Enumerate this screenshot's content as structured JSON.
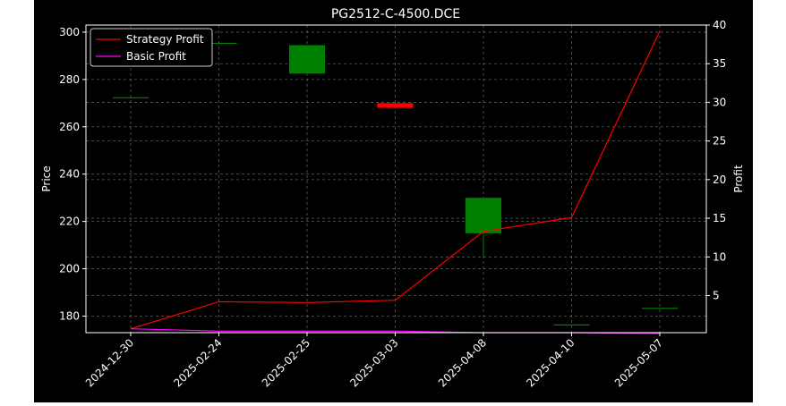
{
  "chart_data": {
    "type": "candlestick+line",
    "title": "PG2512-C-4500.DCE",
    "xlabel": "",
    "ylabel": "Price",
    "y2label": "Profit",
    "categories": [
      "2024-12-30",
      "2025-02-24",
      "2025-02-25",
      "2025-03-03",
      "2025-04-08",
      "2025-04-10",
      "2025-05-07"
    ],
    "ylim": [
      173,
      303
    ],
    "y2lim": [
      0.2,
      40
    ],
    "yticks": [
      180,
      200,
      220,
      240,
      260,
      280,
      300
    ],
    "y2ticks": [
      5,
      10,
      15,
      20,
      25,
      30,
      35,
      40
    ],
    "candles": [
      {
        "date": "2024-12-30",
        "open": 272.5,
        "close": 272.5,
        "high": 272.5,
        "low": 272.5
      },
      {
        "date": "2025-02-24",
        "open": 295.5,
        "close": 295.5,
        "high": 295.5,
        "low": 295.5
      },
      {
        "date": "2025-02-25",
        "open": 282.5,
        "close": 294.5,
        "high": 294.5,
        "low": 282.5
      },
      {
        "date": "2025-03-03",
        "open": 270,
        "close": 268,
        "high": 270,
        "low": 268
      },
      {
        "date": "2025-04-08",
        "open": 215,
        "close": 230,
        "high": 230,
        "low": 205
      },
      {
        "date": "2025-04-10",
        "open": 176.5,
        "close": 176.5,
        "high": 176.5,
        "low": 176.5
      },
      {
        "date": "2025-05-07",
        "open": 183.5,
        "close": 183.5,
        "high": 183.5,
        "low": 183.5
      }
    ],
    "series": [
      {
        "name": "Strategy Profit",
        "color": "#ff0000",
        "axis": "right",
        "values": [
          0.7,
          4.2,
          4.1,
          4.4,
          13.3,
          15.1,
          39.2
        ]
      },
      {
        "name": "Basic Profit",
        "color": "#ff00ff",
        "axis": "right",
        "values": [
          0.7,
          0.4,
          0.4,
          0.4,
          0.2,
          0.2,
          0.1
        ]
      }
    ],
    "colors": {
      "up": "#008000",
      "down": "#ff0000",
      "background": "#000000",
      "figure": "#000000"
    },
    "grid": true,
    "legend": "top-left"
  }
}
